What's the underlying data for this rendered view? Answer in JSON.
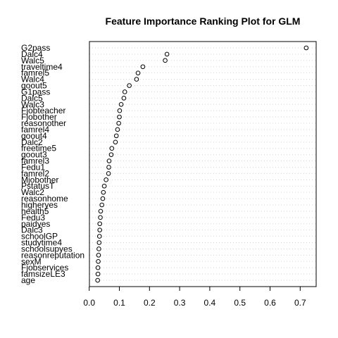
{
  "chart_data": {
    "type": "scatter",
    "title": "Feature Importance Ranking Plot for GLM",
    "xlabel": "",
    "ylabel": "",
    "xlim": [
      0.0,
      0.75
    ],
    "xticks": [
      "0.0",
      "0.1",
      "0.2",
      "0.3",
      "0.4",
      "0.5",
      "0.6",
      "0.7"
    ],
    "grid": "dotted-horizontal",
    "marker": "open-circle",
    "features": [
      "G2pass",
      "Dalc4",
      "Walc5",
      "traveltime4",
      "famrel5",
      "Walc4",
      "goout5",
      "G1pass",
      "Dalc5",
      "Walc3",
      "Fjobteacher",
      "Fjobother",
      "reasonother",
      "famrel4",
      "goout4",
      "Dalc2",
      "freetime5",
      "goout3",
      "famrel3",
      "Fedu1",
      "famrel2",
      "Mjobother",
      "PstatusT",
      "Walc2",
      "reasonhome",
      "higheryes",
      "health5",
      "Fedu3",
      "paidyes",
      "Dalc3",
      "schoolGP",
      "studytime4",
      "schoolsupyes",
      "reasonreputation",
      "sexM",
      "Fjobservices",
      "famsizeLE3",
      "age"
    ],
    "values": [
      0.72,
      0.258,
      0.252,
      0.178,
      0.162,
      0.157,
      0.133,
      0.118,
      0.115,
      0.106,
      0.101,
      0.1,
      0.098,
      0.094,
      0.09,
      0.087,
      0.075,
      0.073,
      0.066,
      0.065,
      0.064,
      0.056,
      0.05,
      0.047,
      0.045,
      0.042,
      0.038,
      0.037,
      0.035,
      0.035,
      0.034,
      0.033,
      0.032,
      0.031,
      0.03,
      0.029,
      0.029,
      0.028
    ]
  }
}
